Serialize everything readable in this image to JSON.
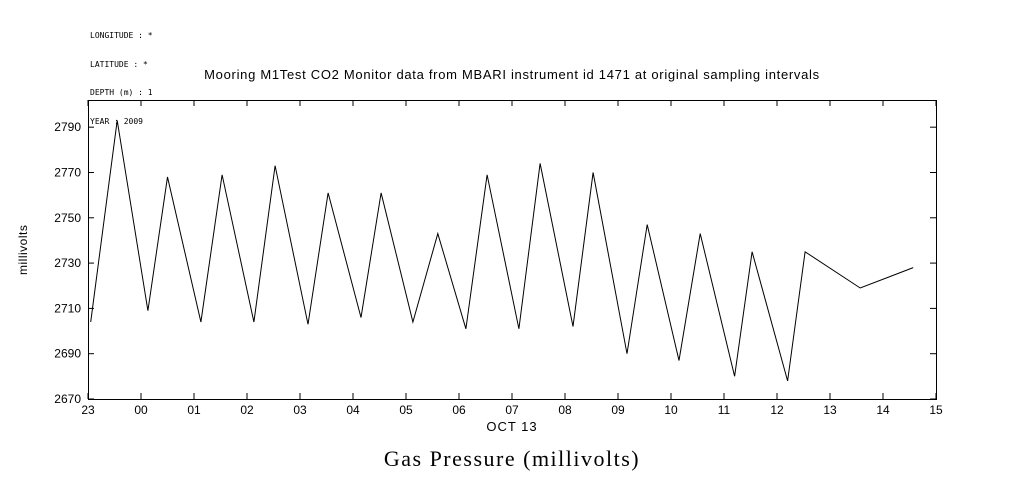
{
  "header_info": {
    "lines": [
      "LONGITUDE : *",
      "LATITUDE : *",
      "DEPTH (m) : 1",
      "YEAR : 2009"
    ]
  },
  "chart_data": {
    "type": "line",
    "title": "Mooring M1Test CO2 Monitor data from MBARI instrument id 1471 at original sampling intervals",
    "xlabel": "OCT 13",
    "ylabel": "millivolts",
    "caption": "Gas Pressure (millivolts)",
    "line_color": "#000000",
    "x_tick_labels": [
      "23",
      "00",
      "01",
      "02",
      "03",
      "04",
      "05",
      "06",
      "07",
      "08",
      "09",
      "10",
      "11",
      "12",
      "13",
      "14",
      "15"
    ],
    "x_tick_unit": "hours, starting Oct 12 23:00",
    "y_ticks": [
      2670,
      2690,
      2710,
      2730,
      2750,
      2770,
      2790
    ],
    "xlim": [
      0,
      16
    ],
    "ylim": [
      2670,
      2802
    ],
    "grid": false,
    "legend": "none",
    "points_format": [
      "hours_after_first_tick",
      "millivolts"
    ],
    "points": [
      [
        0.05,
        2704
      ],
      [
        0.55,
        2793
      ],
      [
        1.13,
        2709
      ],
      [
        1.5,
        2768
      ],
      [
        2.13,
        2704
      ],
      [
        2.53,
        2769
      ],
      [
        3.13,
        2704
      ],
      [
        3.53,
        2773
      ],
      [
        4.15,
        2703
      ],
      [
        4.53,
        2761
      ],
      [
        5.15,
        2706
      ],
      [
        5.53,
        2761
      ],
      [
        6.13,
        2704
      ],
      [
        6.6,
        2743
      ],
      [
        7.13,
        2701
      ],
      [
        7.53,
        2769
      ],
      [
        8.13,
        2701
      ],
      [
        8.53,
        2774
      ],
      [
        9.15,
        2702
      ],
      [
        9.53,
        2770
      ],
      [
        10.17,
        2690
      ],
      [
        10.55,
        2747
      ],
      [
        11.15,
        2687
      ],
      [
        11.55,
        2743
      ],
      [
        12.2,
        2680
      ],
      [
        12.53,
        2735
      ],
      [
        13.2,
        2678
      ],
      [
        13.53,
        2735
      ],
      [
        14.57,
        2719
      ],
      [
        15.57,
        2728
      ]
    ]
  }
}
